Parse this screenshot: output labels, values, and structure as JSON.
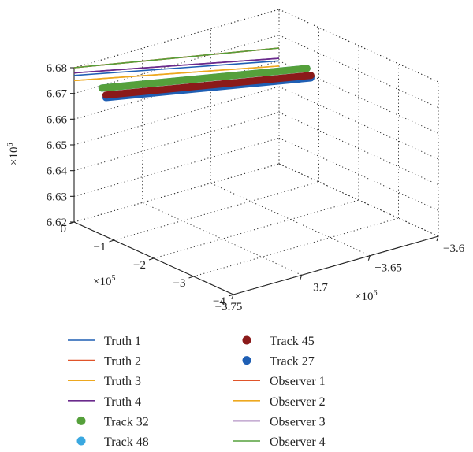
{
  "chart_data": {
    "type": "line",
    "projection": "3d",
    "grid": true,
    "legend_placement": "bottom",
    "axes": {
      "x": {
        "multiplier": "×10",
        "exponent": "6",
        "ticks": [
          -3.75,
          -3.7,
          -3.65,
          -3.6
        ],
        "tick_labels": [
          "−3.75",
          "−3.7",
          "−3.65",
          "−3.6"
        ],
        "range": [
          -3.75,
          -3.6
        ]
      },
      "y": {
        "multiplier": "×10",
        "exponent": "5",
        "ticks": [
          0,
          -1,
          -2,
          -3,
          -4
        ],
        "tick_labels": [
          "0",
          "−1",
          "−2",
          "−3",
          "−4"
        ],
        "range": [
          -4,
          0
        ]
      },
      "z": {
        "multiplier": "×10",
        "exponent": "6",
        "ticks": [
          6.62,
          6.63,
          6.64,
          6.65,
          6.66,
          6.67,
          6.68
        ],
        "tick_labels": [
          "6.62",
          "6.63",
          "6.64",
          "6.65",
          "6.66",
          "6.67",
          "6.68"
        ],
        "range": [
          6.62,
          6.68
        ]
      }
    },
    "series": [
      {
        "name": "Truth 1",
        "style": "line",
        "color": "#1f5fb4",
        "points": [
          [
            -3.6,
            0,
            6.66
          ],
          [
            -3.75,
            0,
            6.677
          ]
        ]
      },
      {
        "name": "Truth 2",
        "style": "line",
        "color": "#e0542a",
        "points": [
          [
            -3.6,
            0,
            6.665
          ],
          [
            -3.75,
            0,
            6.68
          ]
        ]
      },
      {
        "name": "Truth 3",
        "style": "line",
        "color": "#eda81f",
        "points": [
          [
            -3.6,
            0,
            6.658
          ],
          [
            -3.75,
            0,
            6.675
          ]
        ]
      },
      {
        "name": "Truth 4",
        "style": "line",
        "color": "#6a2a8c",
        "points": [
          [
            -3.6,
            0,
            6.661
          ],
          [
            -3.75,
            0,
            6.678
          ]
        ]
      },
      {
        "name": "Track 32",
        "style": "marker",
        "color": "#55a03b",
        "points": [
          [
            -3.6,
            -0.7,
            6.662
          ],
          [
            -3.75,
            -0.7,
            6.677
          ]
        ]
      },
      {
        "name": "Track 48",
        "style": "marker",
        "color": "#3aa8e0",
        "points": [
          [
            -3.6,
            -0.7,
            6.662
          ],
          [
            -3.75,
            -0.7,
            6.677
          ]
        ]
      },
      {
        "name": "Track 45",
        "style": "marker",
        "color": "#8b1a1a",
        "points": [
          [
            -3.6,
            -0.8,
            6.66
          ],
          [
            -3.75,
            -0.8,
            6.675
          ]
        ]
      },
      {
        "name": "Track 27",
        "style": "marker",
        "color": "#1f5fb4",
        "points": [
          [
            -3.6,
            -0.8,
            6.659
          ],
          [
            -3.75,
            -0.8,
            6.674
          ]
        ]
      },
      {
        "name": "Observer 1",
        "style": "line",
        "color": "#e0542a",
        "points": [
          [
            -3.6,
            0,
            6.665
          ],
          [
            -3.75,
            0,
            6.68
          ]
        ]
      },
      {
        "name": "Observer 2",
        "style": "line",
        "color": "#eda81f",
        "points": [
          [
            -3.6,
            0,
            6.658
          ],
          [
            -3.75,
            0,
            6.675
          ]
        ]
      },
      {
        "name": "Observer 3",
        "style": "line",
        "color": "#6a2a8c",
        "points": [
          [
            -3.6,
            0,
            6.661
          ],
          [
            -3.75,
            0,
            6.678
          ]
        ]
      },
      {
        "name": "Observer 4",
        "style": "line",
        "color": "#55a03b",
        "points": [
          [
            -3.6,
            0,
            6.665
          ],
          [
            -3.75,
            0,
            6.68
          ]
        ]
      }
    ]
  }
}
